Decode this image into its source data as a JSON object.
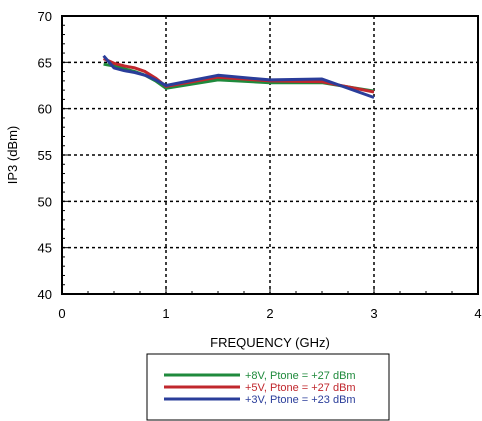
{
  "chart_data": {
    "type": "line",
    "xlabel": "FREQUENCY (GHz)",
    "ylabel": "IP3  (dBm)",
    "xlim": [
      0,
      4
    ],
    "ylim": [
      40,
      70
    ],
    "xticks": [
      "0",
      "1",
      "2",
      "3",
      "4"
    ],
    "yticks": [
      "40",
      "45",
      "50",
      "55",
      "60",
      "65",
      "70"
    ],
    "grid": true,
    "legend_position": "bottom-center",
    "series": [
      {
        "name": "+8V, Ptone = +27 dBm",
        "color": "#1f8a3c",
        "x": [
          0.4,
          0.5,
          0.6,
          0.7,
          0.8,
          0.9,
          1.0,
          1.5,
          2.0,
          2.5,
          3.0
        ],
        "y": [
          64.8,
          64.6,
          64.3,
          64.0,
          63.6,
          63.0,
          62.2,
          63.1,
          62.8,
          62.8,
          61.9
        ]
      },
      {
        "name": "+5V, Ptone = +27 dBm",
        "color": "#c0272d",
        "x": [
          0.4,
          0.5,
          0.6,
          0.7,
          0.8,
          0.9,
          1.0,
          1.5,
          2.0,
          2.5,
          3.0
        ],
        "y": [
          65.4,
          64.9,
          64.6,
          64.4,
          64.0,
          63.3,
          62.4,
          63.4,
          63.0,
          62.9,
          61.8
        ]
      },
      {
        "name": "+3V, Ptone = +23 dBm",
        "color": "#2a3d9a",
        "x": [
          0.4,
          0.5,
          0.6,
          0.7,
          0.8,
          0.9,
          1.0,
          1.5,
          2.0,
          2.5,
          3.0
        ],
        "y": [
          65.7,
          64.4,
          64.1,
          63.9,
          63.6,
          63.1,
          62.5,
          63.6,
          63.1,
          63.2,
          61.2
        ]
      }
    ]
  }
}
